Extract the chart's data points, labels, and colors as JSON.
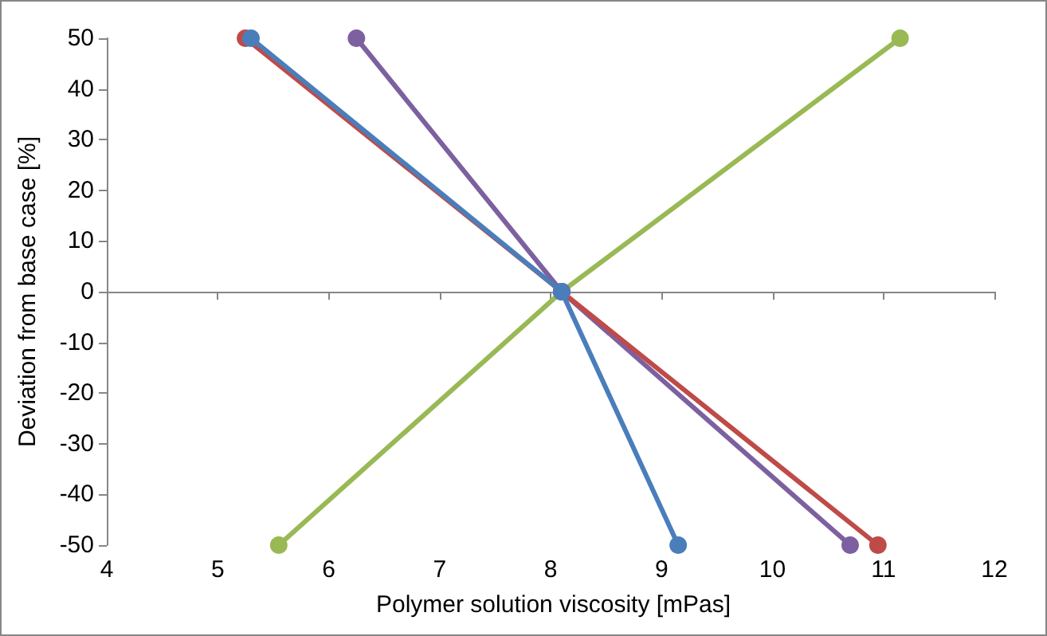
{
  "chart_data": {
    "type": "line",
    "xlabel": "Polymer solution viscosity [mPas]",
    "ylabel": "Deviation from base case [%]",
    "xlim": [
      4,
      12
    ],
    "xticks": [
      4,
      5,
      6,
      7,
      8,
      9,
      10,
      11,
      12
    ],
    "ylim": [
      -50,
      50
    ],
    "yticks": [
      -50,
      -40,
      -30,
      -20,
      -10,
      0,
      10,
      20,
      30,
      40,
      50
    ],
    "marker": "circle",
    "line_style": "solid",
    "series": [
      {
        "color": "#4a7ebb",
        "x": [
          5.3,
          8.1,
          9.15
        ],
        "values": [
          50,
          0,
          -50
        ]
      },
      {
        "color": "#be4b48",
        "x": [
          5.25,
          8.1,
          10.95
        ],
        "values": [
          50,
          0,
          -50
        ]
      },
      {
        "color": "#7d60a0",
        "x": [
          6.25,
          8.1,
          10.7
        ],
        "values": [
          50,
          0,
          -50
        ]
      },
      {
        "color": "#98b954",
        "x": [
          5.55,
          8.1,
          11.15
        ],
        "values": [
          -50,
          0,
          50
        ]
      }
    ]
  }
}
